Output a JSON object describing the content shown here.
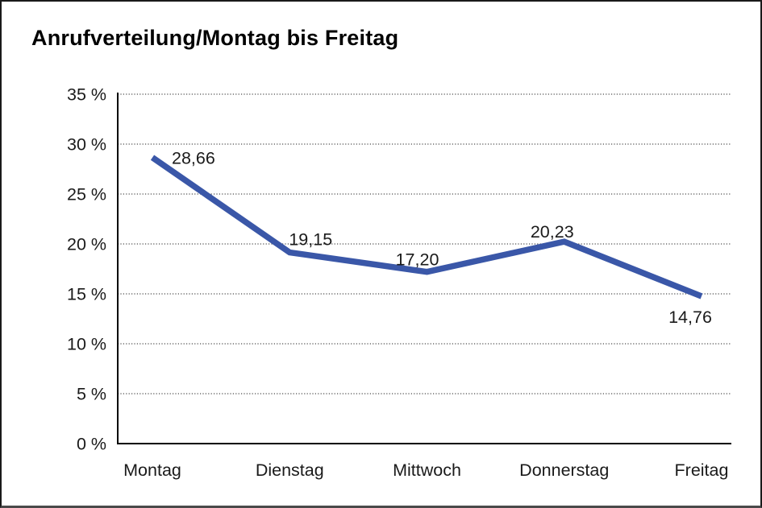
{
  "window": {
    "background": "#ffffff"
  },
  "chart_data": {
    "type": "line",
    "title": "Anrufverteilung/Montag bis Freitag",
    "categories": [
      "Montag",
      "Dienstag",
      "Mittwoch",
      "Donnerstag",
      "Freitag"
    ],
    "series": [
      {
        "name": "Anrufverteilung",
        "values": [
          28.66,
          19.15,
          17.2,
          20.23,
          14.76
        ],
        "value_labels": [
          "28,66",
          "19,15",
          "17,20",
          "20,23",
          "14,76"
        ]
      }
    ],
    "xlabel": "",
    "ylabel": "",
    "ylim": [
      0,
      35
    ],
    "y_tick_step": 5,
    "y_tick_labels": [
      "0 %",
      "5 %",
      "10 %",
      "15 %",
      "20 %",
      "25 %",
      "30 %",
      "35 %"
    ],
    "grid": "horizontal-dotted",
    "legend": "none",
    "colors": {
      "line": "#3A57A8",
      "axis": "#000000",
      "gridline": "#4d4d4d",
      "label_text": "#1a1a1a",
      "title_text": "#000000"
    }
  }
}
